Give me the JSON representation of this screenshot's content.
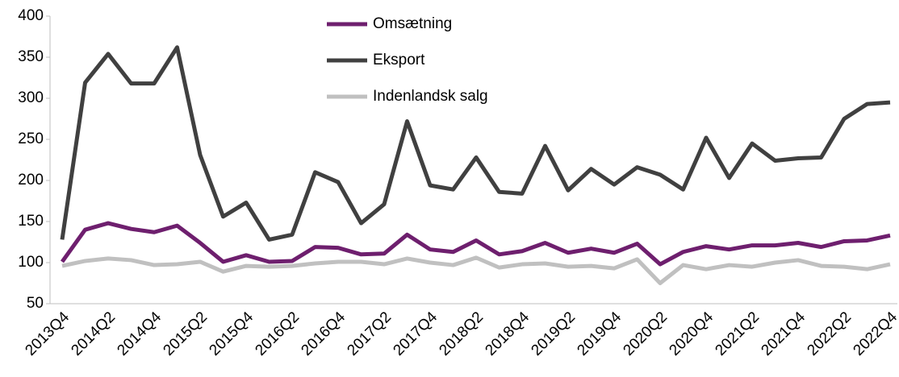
{
  "chart_data": {
    "type": "line",
    "categories": [
      "2013Q4",
      null,
      "2014Q2",
      null,
      "2014Q4",
      null,
      "2015Q2",
      null,
      "2015Q4",
      null,
      "2016Q2",
      null,
      "2016Q4",
      null,
      "2017Q2",
      null,
      "2017Q4",
      null,
      "2018Q2",
      null,
      "2018Q4",
      null,
      "2019Q2",
      null,
      "2019Q4",
      null,
      "2020Q2",
      null,
      "2020Q4",
      null,
      "2021Q2",
      null,
      "2021Q4",
      null,
      "2022Q2",
      null,
      "2022Q4"
    ],
    "series": [
      {
        "name": "Omsætning",
        "color": "#6e1f6e",
        "values": [
          101,
          140,
          148,
          141,
          137,
          145,
          124,
          101,
          109,
          101,
          102,
          119,
          118,
          110,
          111,
          134,
          116,
          113,
          127,
          110,
          114,
          124,
          112,
          117,
          112,
          123,
          98,
          113,
          120,
          116,
          121,
          121,
          124,
          119,
          126,
          127,
          133
        ]
      },
      {
        "name": "Eksport",
        "color": "#404040",
        "values": [
          128,
          319,
          354,
          318,
          318,
          362,
          231,
          156,
          173,
          128,
          134,
          210,
          198,
          148,
          171,
          272,
          194,
          189,
          228,
          186,
          184,
          242,
          188,
          214,
          195,
          216,
          207,
          189,
          252,
          203,
          245,
          224,
          227,
          228,
          275,
          293,
          295
        ]
      },
      {
        "name": "Indenlandsk salg",
        "color": "#c0c0c0",
        "values": [
          96,
          102,
          105,
          103,
          97,
          98,
          101,
          89,
          96,
          95,
          96,
          99,
          101,
          101,
          98,
          105,
          100,
          97,
          106,
          94,
          98,
          99,
          95,
          96,
          93,
          104,
          75,
          97,
          92,
          97,
          95,
          100,
          103,
          96,
          95,
          92,
          98
        ]
      }
    ],
    "ylim": [
      50,
      400
    ],
    "yticks": [
      50,
      100,
      150,
      200,
      250,
      300,
      350,
      400
    ],
    "legend": "top-center",
    "grid": false
  }
}
